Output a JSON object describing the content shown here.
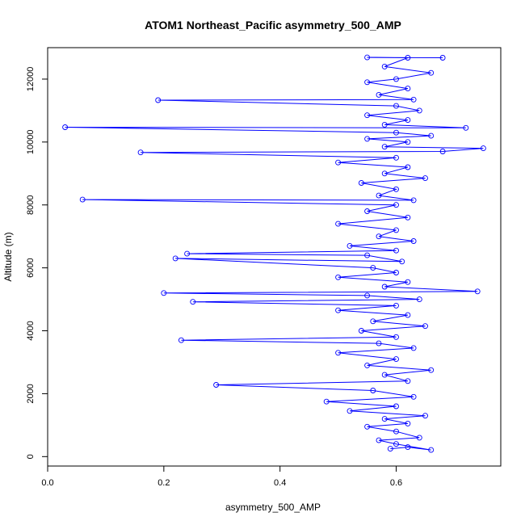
{
  "chart_data": {
    "type": "line",
    "title": "ATOM1 Northeast_Pacific asymmetry_500_AMP",
    "xlabel": "asymmetry_500_AMP",
    "ylabel": "Altitude (m)",
    "xlim": [
      0.0,
      0.78
    ],
    "ylim": [
      -300,
      13000
    ],
    "x_ticks": [
      0.0,
      0.2,
      0.4,
      0.6
    ],
    "x_tick_labels": [
      "0.0",
      "0.2",
      "0.4",
      "0.6"
    ],
    "y_ticks": [
      0,
      2000,
      4000,
      6000,
      8000,
      10000,
      12000
    ],
    "y_tick_labels": [
      "0",
      "2000",
      "4000",
      "6000",
      "8000",
      "10000",
      "12000"
    ],
    "grid": false,
    "legend": "none",
    "series": [
      {
        "color": "#0000ff",
        "marker": "open-circle",
        "line": true,
        "points": [
          [
            0.59,
            250
          ],
          [
            0.62,
            300
          ],
          [
            0.66,
            210
          ],
          [
            0.6,
            400
          ],
          [
            0.57,
            520
          ],
          [
            0.64,
            600
          ],
          [
            0.6,
            800
          ],
          [
            0.55,
            950
          ],
          [
            0.62,
            1050
          ],
          [
            0.58,
            1200
          ],
          [
            0.65,
            1300
          ],
          [
            0.52,
            1450
          ],
          [
            0.6,
            1600
          ],
          [
            0.48,
            1750
          ],
          [
            0.63,
            1900
          ],
          [
            0.56,
            2100
          ],
          [
            0.29,
            2280
          ],
          [
            0.62,
            2400
          ],
          [
            0.58,
            2600
          ],
          [
            0.66,
            2750
          ],
          [
            0.55,
            2900
          ],
          [
            0.6,
            3100
          ],
          [
            0.5,
            3300
          ],
          [
            0.63,
            3450
          ],
          [
            0.57,
            3600
          ],
          [
            0.23,
            3700
          ],
          [
            0.6,
            3800
          ],
          [
            0.54,
            4000
          ],
          [
            0.65,
            4150
          ],
          [
            0.56,
            4300
          ],
          [
            0.62,
            4500
          ],
          [
            0.5,
            4650
          ],
          [
            0.6,
            4800
          ],
          [
            0.25,
            4920
          ],
          [
            0.64,
            5000
          ],
          [
            0.55,
            5120
          ],
          [
            0.2,
            5200
          ],
          [
            0.74,
            5250
          ],
          [
            0.58,
            5400
          ],
          [
            0.62,
            5550
          ],
          [
            0.5,
            5700
          ],
          [
            0.6,
            5850
          ],
          [
            0.56,
            6000
          ],
          [
            0.22,
            6300
          ],
          [
            0.61,
            6200
          ],
          [
            0.55,
            6400
          ],
          [
            0.24,
            6450
          ],
          [
            0.6,
            6550
          ],
          [
            0.52,
            6700
          ],
          [
            0.63,
            6850
          ],
          [
            0.57,
            7000
          ],
          [
            0.6,
            7200
          ],
          [
            0.5,
            7400
          ],
          [
            0.62,
            7600
          ],
          [
            0.55,
            7800
          ],
          [
            0.6,
            8000
          ],
          [
            0.06,
            8170
          ],
          [
            0.63,
            8150
          ],
          [
            0.57,
            8300
          ],
          [
            0.6,
            8500
          ],
          [
            0.54,
            8700
          ],
          [
            0.65,
            8850
          ],
          [
            0.58,
            9000
          ],
          [
            0.62,
            9200
          ],
          [
            0.5,
            9350
          ],
          [
            0.6,
            9500
          ],
          [
            0.16,
            9670
          ],
          [
            0.68,
            9700
          ],
          [
            0.75,
            9800
          ],
          [
            0.58,
            9850
          ],
          [
            0.62,
            10000
          ],
          [
            0.55,
            10100
          ],
          [
            0.66,
            10200
          ],
          [
            0.6,
            10300
          ],
          [
            0.03,
            10470
          ],
          [
            0.72,
            10450
          ],
          [
            0.58,
            10550
          ],
          [
            0.62,
            10700
          ],
          [
            0.55,
            10850
          ],
          [
            0.64,
            11000
          ],
          [
            0.6,
            11150
          ],
          [
            0.19,
            11330
          ],
          [
            0.63,
            11350
          ],
          [
            0.57,
            11500
          ],
          [
            0.62,
            11700
          ],
          [
            0.55,
            11900
          ],
          [
            0.6,
            12000
          ],
          [
            0.66,
            12200
          ],
          [
            0.58,
            12400
          ],
          [
            0.62,
            12680
          ],
          [
            0.55,
            12690
          ],
          [
            0.68,
            12680
          ]
        ]
      }
    ]
  }
}
